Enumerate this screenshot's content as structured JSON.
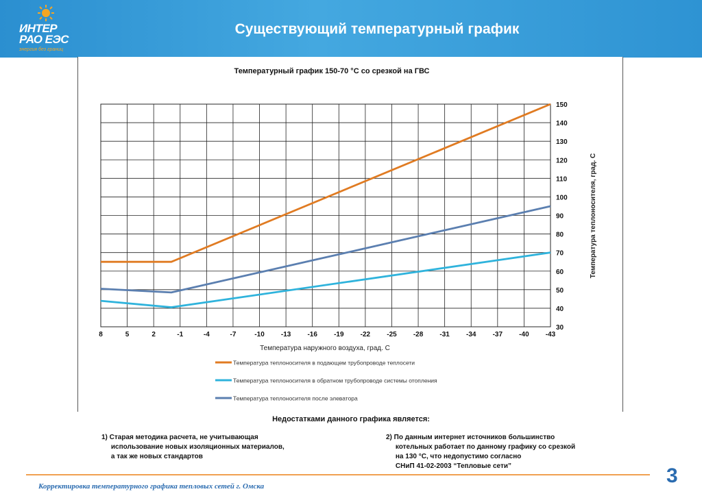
{
  "header": {
    "title": "Существующий температурный график",
    "logo_line1": "ИНТЕР",
    "logo_line2": "РАО ЕЭС",
    "logo_tagline": "энергия без границ"
  },
  "chart_data": {
    "type": "line",
    "title": "Температурный график 150-70 °С со срезкой на ГВС",
    "xlabel": "Температура наружного воздуха, град. С",
    "ylabel": "Температура теплоносителя, град. С",
    "x_tick_labels": [
      "8",
      "5",
      "2",
      "-1",
      "-4",
      "-7",
      "-10",
      "-13",
      "-16",
      "-19",
      "-22",
      "-25",
      "-28",
      "-31",
      "-34",
      "-37",
      "-40",
      "-43"
    ],
    "xlim": [
      8,
      -43
    ],
    "ylim": [
      30,
      150
    ],
    "y_ticks": [
      30,
      40,
      50,
      60,
      70,
      80,
      90,
      100,
      110,
      120,
      130,
      140,
      150
    ],
    "y_axis_position": "right",
    "grid": true,
    "legend_position": "bottom",
    "series": [
      {
        "name": "Температура теплоносителя в подающем трубопроводе теплосети",
        "color": "#e07b22",
        "x": [
          8,
          0,
          -43
        ],
        "y": [
          65,
          65,
          150
        ]
      },
      {
        "name": "Температура теплоносителя в обратном трубопроводе системы отопления",
        "color": "#2fb3dc",
        "x": [
          8,
          0,
          -43
        ],
        "y": [
          44,
          40.5,
          70
        ]
      },
      {
        "name": "Температура теплоносителя после элеватора",
        "color": "#5b7fb0",
        "x": [
          8,
          0,
          -43
        ],
        "y": [
          50.5,
          48.5,
          95
        ]
      }
    ]
  },
  "notes": {
    "heading": "Недостатками данного графика является:",
    "left": "1) Старая методика расчета, не учитывающая\n     использование новых изоляционных материалов,\n     а так же новых стандартов",
    "right": "2) По данным интернет источников большинство\n     котельных работает по данному графику со срезкой\n     на 130 °С, что недопустимо согласно\n     СНиП 41-02-2003 “Тепловые сети”"
  },
  "footer": {
    "text": "Корректировка температурного графика тепловых сетей г. Омска",
    "page_number": "3"
  },
  "colors": {
    "header_blue": "#3a9fdc",
    "accent_orange": "#f0a050",
    "footer_blue": "#2b6cb0"
  }
}
